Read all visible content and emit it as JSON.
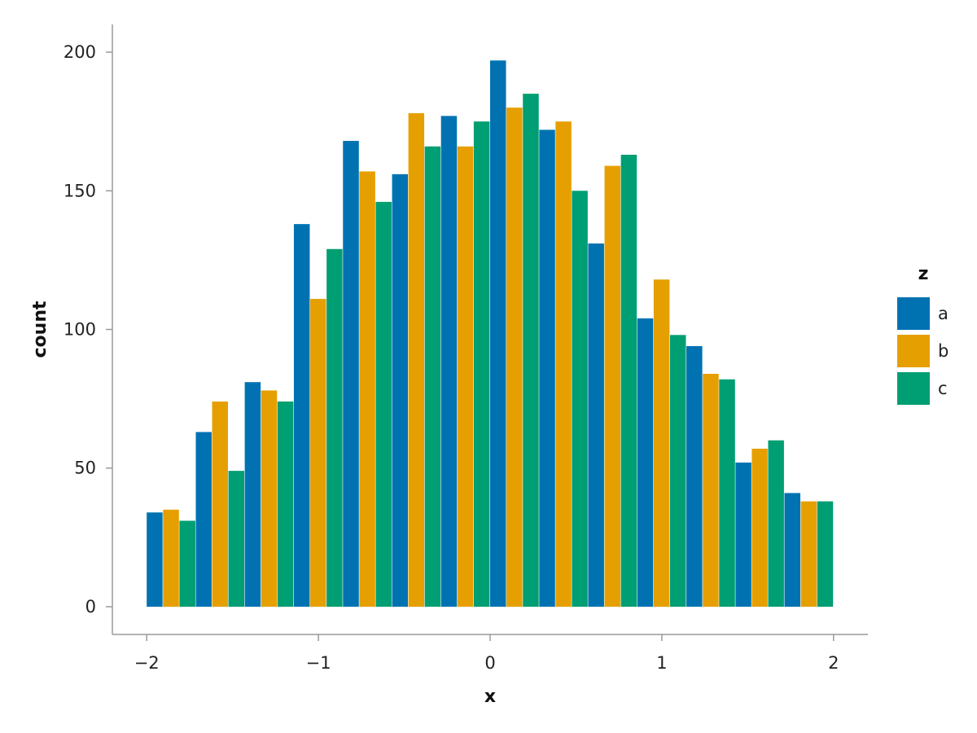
{
  "chart_data": {
    "type": "bar",
    "xlabel": "x",
    "ylabel": "count",
    "xlim": [
      -2.2,
      2.2
    ],
    "ylim": [
      -10,
      210
    ],
    "x_ticks": [
      -2,
      -1,
      0,
      1,
      2
    ],
    "x_tick_labels": [
      "−2",
      "−1",
      "0",
      "1",
      "2"
    ],
    "y_ticks": [
      0,
      50,
      100,
      150,
      200
    ],
    "y_tick_labels": [
      "0",
      "50",
      "100",
      "150",
      "200"
    ],
    "bins": [
      [
        -2.0,
        -1.714
      ],
      [
        -1.714,
        -1.429
      ],
      [
        -1.429,
        -1.143
      ],
      [
        -1.143,
        -0.857
      ],
      [
        -0.857,
        -0.571
      ],
      [
        -0.571,
        -0.286
      ],
      [
        -0.286,
        0.0
      ],
      [
        0.0,
        0.286
      ],
      [
        0.286,
        0.571
      ],
      [
        0.571,
        0.857
      ],
      [
        0.857,
        1.143
      ],
      [
        1.143,
        1.429
      ],
      [
        1.429,
        1.714
      ],
      [
        1.714,
        2.0
      ]
    ],
    "series": [
      {
        "name": "a",
        "color": "#0072B2",
        "values": [
          34,
          63,
          81,
          138,
          168,
          156,
          177,
          197,
          172,
          131,
          104,
          94,
          52,
          41
        ]
      },
      {
        "name": "b",
        "color": "#E69F00",
        "values": [
          35,
          74,
          78,
          111,
          157,
          178,
          166,
          180,
          175,
          159,
          118,
          84,
          57,
          38
        ]
      },
      {
        "name": "c",
        "color": "#009E73",
        "values": [
          31,
          49,
          74,
          129,
          146,
          166,
          175,
          185,
          150,
          163,
          98,
          82,
          60,
          38
        ]
      }
    ],
    "grid": false,
    "legend": {
      "title": "z",
      "placement": "right"
    }
  }
}
